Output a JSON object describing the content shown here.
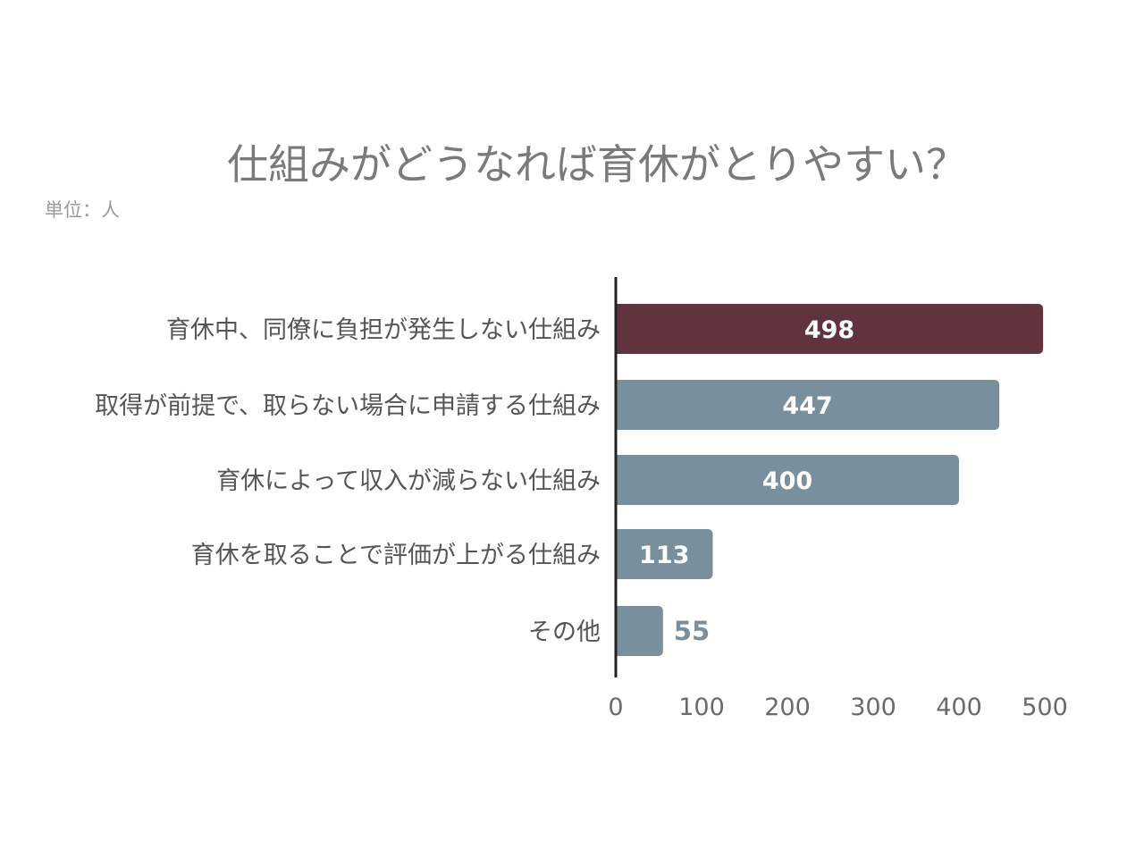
{
  "chart_data": {
    "type": "bar",
    "orientation": "horizontal",
    "title": "仕組みがどうなれば育休がとりやすい？",
    "unit_label": "単位：人",
    "categories": [
      "育休中、同僚に負担が発生しない仕組み",
      "取得が前提で、取らない場合に申請する仕組み",
      "育休によって収入が減らない仕組み",
      "育休を取ることで評価が上がる仕組み",
      "その他"
    ],
    "values": [
      498,
      447,
      400,
      113,
      55
    ],
    "value_labels": [
      "498",
      "447",
      "400",
      "113",
      "55"
    ],
    "xlim": [
      0,
      500
    ],
    "x_ticks": [
      "0",
      "100",
      "200",
      "300",
      "400",
      "500"
    ],
    "grid": false,
    "legend": "none",
    "colors": {
      "highlight": "#61343d",
      "default": "#7a8f9d",
      "axis": "#222222"
    }
  }
}
